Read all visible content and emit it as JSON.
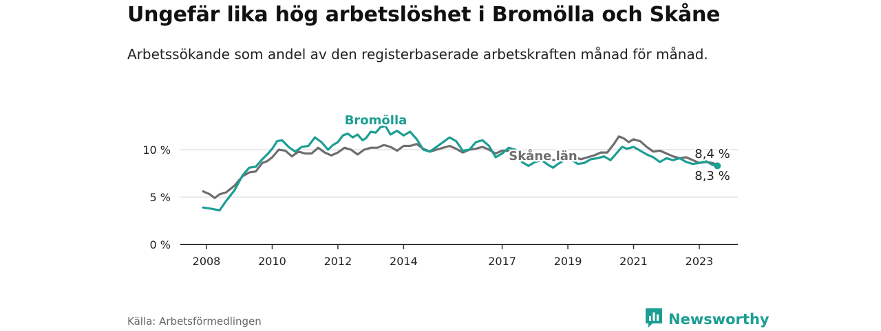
{
  "title": "Ungefär lika hög arbetslöshet i Bromölla och Skåne",
  "subtitle": "Arbetssökande som andel av den registerbaserade arbetskraften månad för månad.",
  "source": "Källa: Arbetsförmedlingen",
  "brand": {
    "name": "Newsworthy",
    "icon": "newsworthy-logo-icon",
    "color": "#1c9e93"
  },
  "chart_data": {
    "type": "line",
    "x_range": [
      2007.7,
      2024.2
    ],
    "ylim": [
      0,
      13
    ],
    "yticks": [
      0,
      5,
      10
    ],
    "ytick_labels": [
      "0 %",
      "5 %",
      "10 %"
    ],
    "xticks": [
      2008,
      2010,
      2012,
      2014,
      2017,
      2019,
      2021,
      2023
    ],
    "xtick_labels": [
      "2008",
      "2010",
      "2012",
      "2014",
      "2017",
      "2019",
      "2021",
      "2023"
    ],
    "grid": true,
    "series": [
      {
        "name": "Skåne län",
        "label": "Skåne län",
        "color": "#6e6d70",
        "end_label": "8,4 %",
        "points": [
          [
            2007.9,
            5.6
          ],
          [
            2008.1,
            5.3
          ],
          [
            2008.25,
            4.9
          ],
          [
            2008.4,
            5.3
          ],
          [
            2008.6,
            5.5
          ],
          [
            2008.85,
            6.2
          ],
          [
            2009.1,
            7.2
          ],
          [
            2009.3,
            7.6
          ],
          [
            2009.5,
            7.7
          ],
          [
            2009.7,
            8.6
          ],
          [
            2009.85,
            8.8
          ],
          [
            2010.0,
            9.2
          ],
          [
            2010.2,
            10.0
          ],
          [
            2010.4,
            9.9
          ],
          [
            2010.6,
            9.3
          ],
          [
            2010.8,
            9.8
          ],
          [
            2011.0,
            9.6
          ],
          [
            2011.2,
            9.6
          ],
          [
            2011.4,
            10.2
          ],
          [
            2011.6,
            9.7
          ],
          [
            2011.8,
            9.4
          ],
          [
            2012.0,
            9.7
          ],
          [
            2012.2,
            10.2
          ],
          [
            2012.4,
            10.0
          ],
          [
            2012.6,
            9.5
          ],
          [
            2012.8,
            10.0
          ],
          [
            2013.0,
            10.2
          ],
          [
            2013.2,
            10.2
          ],
          [
            2013.4,
            10.5
          ],
          [
            2013.6,
            10.3
          ],
          [
            2013.8,
            9.9
          ],
          [
            2014.0,
            10.4
          ],
          [
            2014.2,
            10.4
          ],
          [
            2014.4,
            10.6
          ],
          [
            2014.6,
            10.1
          ],
          [
            2014.8,
            9.8
          ],
          [
            2015.0,
            10.0
          ],
          [
            2015.2,
            10.2
          ],
          [
            2015.4,
            10.4
          ],
          [
            2015.6,
            10.1
          ],
          [
            2015.8,
            9.7
          ],
          [
            2016.0,
            10.0
          ],
          [
            2016.2,
            10.1
          ],
          [
            2016.4,
            10.3
          ],
          [
            2016.6,
            10.0
          ],
          [
            2016.8,
            9.6
          ],
          [
            2017.0,
            9.9
          ],
          [
            2017.2,
            9.9
          ],
          [
            2017.4,
            9.6
          ],
          [
            2017.6,
            9.3
          ],
          [
            2017.8,
            9.5
          ],
          [
            2018.0,
            9.3
          ],
          [
            2018.2,
            9.1
          ],
          [
            2018.4,
            9.0
          ],
          [
            2018.6,
            8.9
          ],
          [
            2018.8,
            8.9
          ],
          [
            2019.0,
            9.0
          ],
          [
            2019.2,
            9.2
          ],
          [
            2019.4,
            9.0
          ],
          [
            2019.6,
            9.2
          ],
          [
            2019.8,
            9.4
          ],
          [
            2020.0,
            9.7
          ],
          [
            2020.2,
            9.7
          ],
          [
            2020.4,
            10.6
          ],
          [
            2020.55,
            11.4
          ],
          [
            2020.7,
            11.2
          ],
          [
            2020.85,
            10.8
          ],
          [
            2021.0,
            11.1
          ],
          [
            2021.2,
            10.9
          ],
          [
            2021.4,
            10.3
          ],
          [
            2021.6,
            9.8
          ],
          [
            2021.8,
            9.9
          ],
          [
            2022.0,
            9.6
          ],
          [
            2022.2,
            9.3
          ],
          [
            2022.4,
            9.1
          ],
          [
            2022.6,
            9.2
          ],
          [
            2022.8,
            8.9
          ],
          [
            2023.0,
            8.6
          ],
          [
            2023.2,
            8.7
          ],
          [
            2023.4,
            8.6
          ],
          [
            2023.55,
            8.4
          ]
        ]
      },
      {
        "name": "Bromölla",
        "label": "Bromölla",
        "color": "#1c9e93",
        "end_label": "8,3 %",
        "points": [
          [
            2007.9,
            3.9
          ],
          [
            2008.1,
            3.8
          ],
          [
            2008.25,
            3.7
          ],
          [
            2008.4,
            3.6
          ],
          [
            2008.6,
            4.6
          ],
          [
            2008.85,
            5.7
          ],
          [
            2009.1,
            7.3
          ],
          [
            2009.3,
            8.1
          ],
          [
            2009.5,
            8.2
          ],
          [
            2009.7,
            9.0
          ],
          [
            2009.85,
            9.5
          ],
          [
            2010.0,
            10.1
          ],
          [
            2010.15,
            10.9
          ],
          [
            2010.3,
            11.0
          ],
          [
            2010.5,
            10.3
          ],
          [
            2010.7,
            9.8
          ],
          [
            2010.9,
            10.3
          ],
          [
            2011.1,
            10.4
          ],
          [
            2011.3,
            11.3
          ],
          [
            2011.5,
            10.8
          ],
          [
            2011.7,
            10.0
          ],
          [
            2011.85,
            10.5
          ],
          [
            2012.0,
            10.8
          ],
          [
            2012.15,
            11.5
          ],
          [
            2012.3,
            11.7
          ],
          [
            2012.45,
            11.3
          ],
          [
            2012.6,
            11.6
          ],
          [
            2012.75,
            11.0
          ],
          [
            2012.85,
            11.2
          ],
          [
            2013.0,
            11.9
          ],
          [
            2013.15,
            11.8
          ],
          [
            2013.3,
            12.4
          ],
          [
            2013.45,
            12.5
          ],
          [
            2013.6,
            11.6
          ],
          [
            2013.8,
            12.0
          ],
          [
            2014.0,
            11.5
          ],
          [
            2014.2,
            11.9
          ],
          [
            2014.4,
            11.1
          ],
          [
            2014.6,
            10.0
          ],
          [
            2014.8,
            9.8
          ],
          [
            2015.0,
            10.3
          ],
          [
            2015.2,
            10.8
          ],
          [
            2015.4,
            11.3
          ],
          [
            2015.6,
            10.9
          ],
          [
            2015.8,
            9.9
          ],
          [
            2016.0,
            10.0
          ],
          [
            2016.2,
            10.8
          ],
          [
            2016.4,
            11.0
          ],
          [
            2016.6,
            10.4
          ],
          [
            2016.8,
            9.2
          ],
          [
            2017.0,
            9.6
          ],
          [
            2017.2,
            10.2
          ],
          [
            2017.4,
            10.0
          ],
          [
            2017.6,
            8.7
          ],
          [
            2017.8,
            8.3
          ],
          [
            2018.0,
            8.7
          ],
          [
            2018.2,
            8.9
          ],
          [
            2018.4,
            8.4
          ],
          [
            2018.55,
            8.1
          ],
          [
            2018.7,
            8.5
          ],
          [
            2018.9,
            8.9
          ],
          [
            2019.1,
            9.0
          ],
          [
            2019.3,
            8.5
          ],
          [
            2019.5,
            8.6
          ],
          [
            2019.7,
            9.0
          ],
          [
            2019.9,
            9.1
          ],
          [
            2020.1,
            9.3
          ],
          [
            2020.3,
            8.9
          ],
          [
            2020.5,
            9.7
          ],
          [
            2020.65,
            10.3
          ],
          [
            2020.8,
            10.1
          ],
          [
            2021.0,
            10.3
          ],
          [
            2021.2,
            9.9
          ],
          [
            2021.4,
            9.5
          ],
          [
            2021.6,
            9.2
          ],
          [
            2021.8,
            8.7
          ],
          [
            2022.0,
            9.1
          ],
          [
            2022.2,
            8.9
          ],
          [
            2022.4,
            9.1
          ],
          [
            2022.6,
            8.7
          ],
          [
            2022.8,
            8.5
          ],
          [
            2023.0,
            8.6
          ],
          [
            2023.2,
            8.8
          ],
          [
            2023.4,
            8.4
          ],
          [
            2023.55,
            8.3
          ]
        ]
      }
    ]
  }
}
